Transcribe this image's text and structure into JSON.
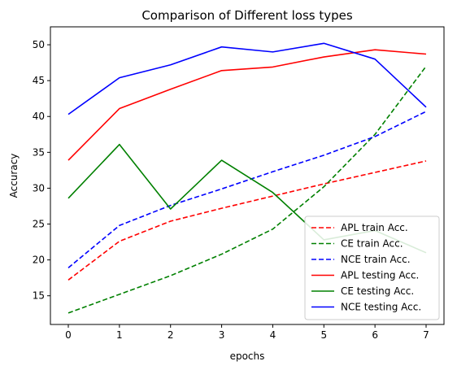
{
  "chart_data": {
    "type": "line",
    "title": "Comparison of Different loss types",
    "xlabel": "epochs",
    "ylabel": "Accuracy",
    "x": [
      0,
      1,
      2,
      3,
      4,
      5,
      6,
      7
    ],
    "xlim": [
      -0.35,
      7.35
    ],
    "ylim": [
      11,
      52.5
    ],
    "xticks": [
      0,
      1,
      2,
      3,
      4,
      5,
      6,
      7
    ],
    "yticks": [
      15,
      20,
      25,
      30,
      35,
      40,
      45,
      50
    ],
    "grid": false,
    "legend_position": "lower-right",
    "series": [
      {
        "name": "APL train Acc.",
        "color": "#ff0000",
        "style": "dashed",
        "values": [
          17.2,
          22.6,
          25.4,
          27.2,
          28.9,
          30.6,
          32.2,
          33.8
        ]
      },
      {
        "name": "CE train Acc.",
        "color": "#008000",
        "style": "dashed",
        "values": [
          12.6,
          15.2,
          17.8,
          20.8,
          24.3,
          30.2,
          37.5,
          47.0
        ]
      },
      {
        "name": "NCE train Acc.",
        "color": "#0000ff",
        "style": "dashed",
        "values": [
          18.9,
          24.8,
          27.6,
          29.9,
          32.3,
          34.6,
          37.2,
          40.7
        ]
      },
      {
        "name": "APL testing Acc.",
        "color": "#ff0000",
        "style": "solid",
        "values": [
          33.9,
          41.1,
          43.8,
          46.4,
          46.9,
          48.3,
          49.3,
          48.7
        ]
      },
      {
        "name": "CE testing Acc.",
        "color": "#008000",
        "style": "solid",
        "values": [
          28.6,
          36.1,
          27.1,
          33.9,
          29.4,
          22.8,
          24.1,
          21.0
        ]
      },
      {
        "name": "NCE testing Acc.",
        "color": "#0000ff",
        "style": "solid",
        "values": [
          40.3,
          45.4,
          47.2,
          49.7,
          49.0,
          50.2,
          48.0,
          41.3
        ]
      }
    ]
  }
}
